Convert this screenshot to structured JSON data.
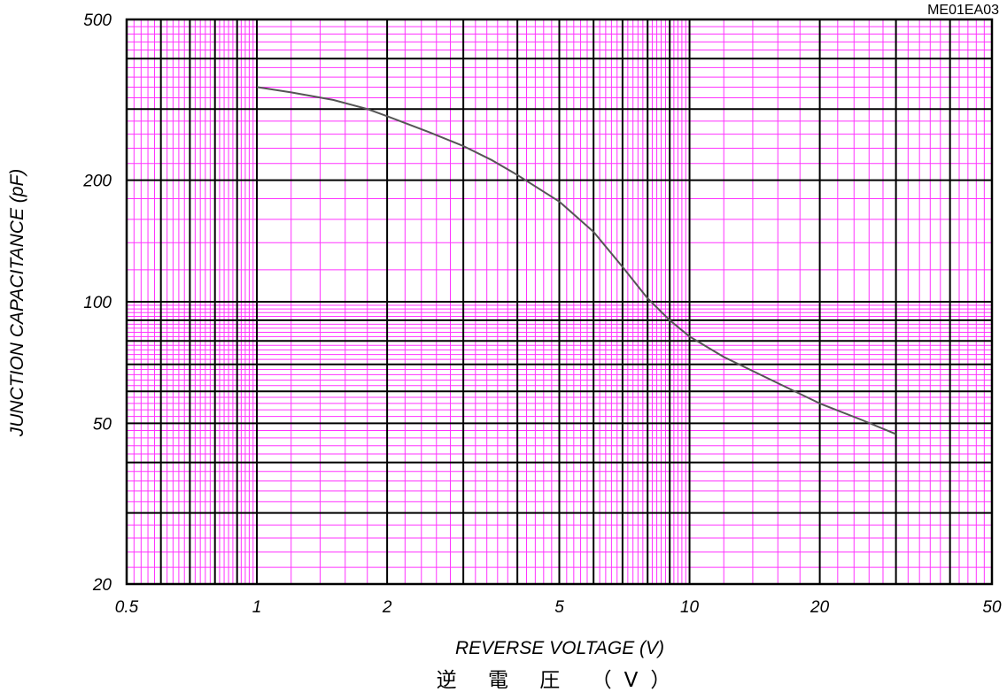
{
  "chart_data": {
    "type": "line",
    "code": "ME01EA03",
    "xlabel": "REVERSE VOLTAGE (V)",
    "xlabel_jp": "逆 電 圧 （V）",
    "ylabel": "JUNCTION CAPACITANCE (pF)",
    "x_scale": "log",
    "y_scale": "log",
    "xlim": [
      0.5,
      50
    ],
    "ylim": [
      20,
      500
    ],
    "x_ticks": [
      {
        "value": 0.5,
        "label": "0.5"
      },
      {
        "value": 1,
        "label": "1"
      },
      {
        "value": 2,
        "label": "2"
      },
      {
        "value": 5,
        "label": "5"
      },
      {
        "value": 10,
        "label": "10"
      },
      {
        "value": 20,
        "label": "20"
      },
      {
        "value": 50,
        "label": "50"
      }
    ],
    "y_ticks": [
      {
        "value": 20,
        "label": "20"
      },
      {
        "value": 50,
        "label": "50"
      },
      {
        "value": 100,
        "label": "100"
      },
      {
        "value": 200,
        "label": "200"
      },
      {
        "value": 500,
        "label": "500"
      }
    ],
    "grid": true,
    "colors": {
      "major_grid": "#000000",
      "minor_grid": "#ff33ff",
      "curve": "#555555"
    },
    "series": [
      {
        "points": [
          [
            1,
            340
          ],
          [
            1.2,
            330
          ],
          [
            1.5,
            316
          ],
          [
            1.8,
            300
          ],
          [
            2,
            288
          ],
          [
            2.5,
            263
          ],
          [
            3,
            243
          ],
          [
            3.5,
            224
          ],
          [
            4,
            206
          ],
          [
            5,
            177
          ],
          [
            6,
            149
          ],
          [
            7,
            122
          ],
          [
            8,
            102
          ],
          [
            9,
            90
          ],
          [
            10,
            82
          ],
          [
            12,
            73
          ],
          [
            15,
            65
          ],
          [
            20,
            56
          ],
          [
            25,
            51
          ],
          [
            30,
            47
          ]
        ]
      }
    ]
  }
}
